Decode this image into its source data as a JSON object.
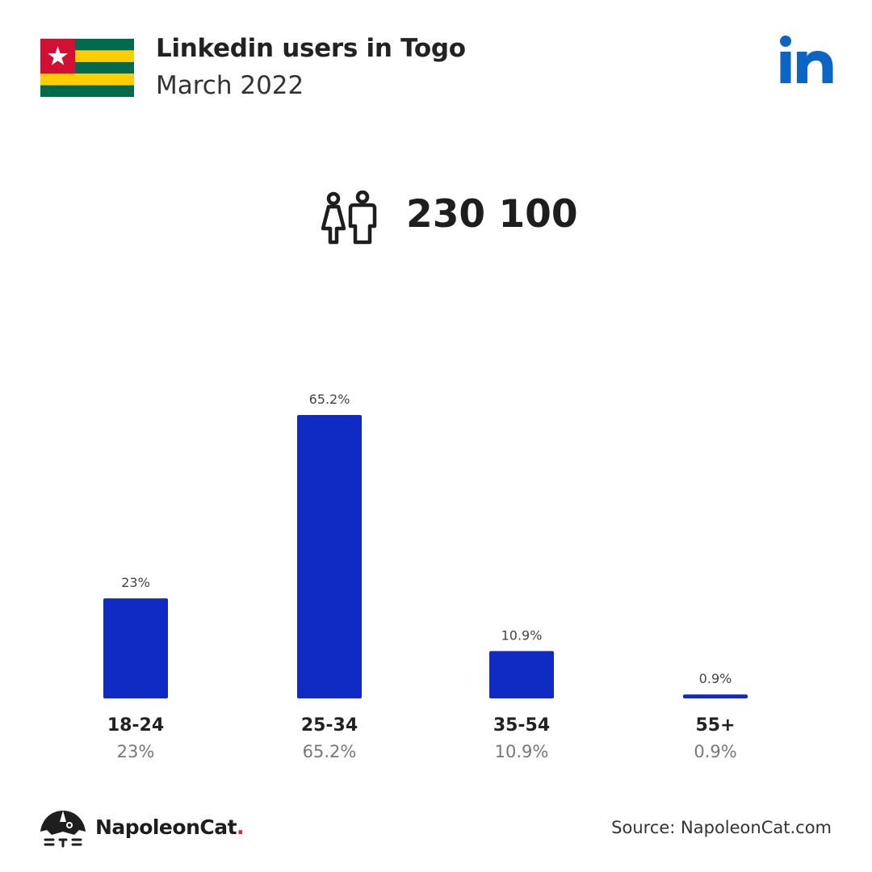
{
  "header": {
    "title": "Linkedin users in Togo",
    "subtitle": "March 2022",
    "flag_colors": {
      "green": "#006a4e",
      "yellow": "#ffce00",
      "red": "#d21034",
      "star": "#ffffff"
    },
    "logo_icon": "linkedin-icon",
    "logo_color": "#0a66c2"
  },
  "total": {
    "icon": "users-icon",
    "value": "230 100"
  },
  "chart_data": {
    "type": "bar",
    "categories": [
      "18-24",
      "25-34",
      "35-54",
      "55+"
    ],
    "values": [
      23,
      65.2,
      10.9,
      0.9
    ],
    "value_labels": [
      "23%",
      "65.2%",
      "10.9%",
      "0.9%"
    ],
    "category_percent_labels": [
      "23%",
      "65.2%",
      "10.9%",
      "0.9%"
    ],
    "ylim": [
      0,
      65.2
    ],
    "grid": false,
    "bar_color": "#0f2bc4"
  },
  "footer": {
    "brand_icon": "napoleoncat-logo-icon",
    "brand_name": "NapoleonCat",
    "brand_dot": ".",
    "source": "Source: NapoleonCat.com"
  }
}
